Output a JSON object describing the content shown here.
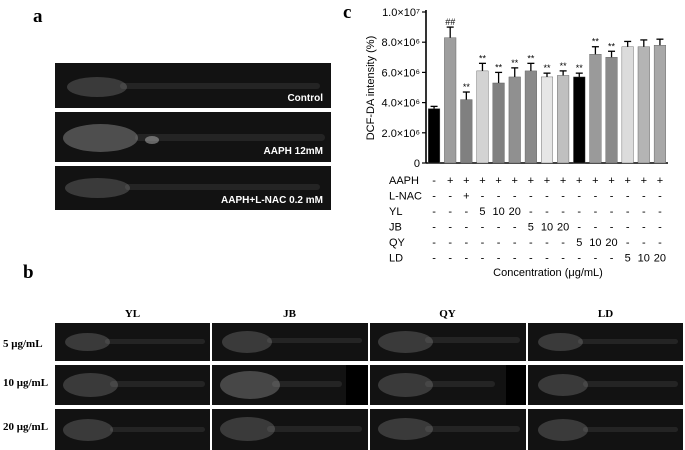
{
  "panels": {
    "a": {
      "letter": "a",
      "images": [
        {
          "label": "Control"
        },
        {
          "label": "AAPH 12mM"
        },
        {
          "label": "AAPH+L-NAC 0.2 mM"
        }
      ]
    },
    "b": {
      "letter": "b",
      "columns": [
        "YL",
        "JB",
        "QY",
        "LD"
      ],
      "rows": [
        "5 μg/mL",
        "10 μg/mL",
        "20 μg/mL"
      ]
    },
    "c": {
      "letter": "c"
    }
  },
  "chart_data": {
    "type": "bar",
    "ylabel": "DCF-DA intensity (%)",
    "xlabel": "Concentration (μg/mL)",
    "ylim": [
      0,
      10000000
    ],
    "yticks": [
      "0",
      "2.0×10⁶",
      "4.0×10⁶",
      "6.0×10⁶",
      "8.0×10⁶",
      "1.0×10⁷"
    ],
    "ytick_values": [
      0,
      2000000,
      4000000,
      6000000,
      8000000,
      10000000
    ],
    "values": [
      3600000,
      8300000,
      4200000,
      6100000,
      5300000,
      5700000,
      6100000,
      5700000,
      5800000,
      5700000,
      7200000,
      7000000,
      7700000,
      7700000,
      7800000
    ],
    "errors": [
      150000,
      700000,
      500000,
      500000,
      700000,
      600000,
      500000,
      250000,
      300000,
      250000,
      500000,
      400000,
      350000,
      450000,
      400000
    ],
    "bar_colors": [
      "#000000",
      "#9e9e9e",
      "#808080",
      "#d3d3d3",
      "#808080",
      "#909090",
      "#8a8a8a",
      "#e6e6e6",
      "#c0c0c0",
      "#000000",
      "#9a9a9a",
      "#8a8a8a",
      "#dcdcdc",
      "#b4b4b4",
      "#a8a8a8"
    ],
    "annotations": [
      "",
      "##",
      "**",
      "**",
      "**",
      "**",
      "**",
      "**",
      "**",
      "**",
      "**",
      "**",
      "",
      "",
      ""
    ],
    "table_rows": [
      {
        "label": "AAPH",
        "cells": [
          "-",
          "+",
          "+",
          "+",
          "+",
          "+",
          "+",
          "+",
          "+",
          "+",
          "+",
          "+",
          "+",
          "+",
          "+"
        ]
      },
      {
        "label": "L-NAC",
        "cells": [
          "-",
          "-",
          "+",
          "-",
          "-",
          "-",
          "-",
          "-",
          "-",
          "-",
          "-",
          "-",
          "-",
          "-",
          "-"
        ]
      },
      {
        "label": "YL",
        "cells": [
          "-",
          "-",
          "-",
          "5",
          "10",
          "20",
          "-",
          "-",
          "-",
          "-",
          "-",
          "-",
          "-",
          "-",
          "-"
        ]
      },
      {
        "label": "JB",
        "cells": [
          "-",
          "-",
          "-",
          "-",
          "-",
          "-",
          "5",
          "10",
          "20",
          "-",
          "-",
          "-",
          "-",
          "-",
          "-"
        ]
      },
      {
        "label": "QY",
        "cells": [
          "-",
          "-",
          "-",
          "-",
          "-",
          "-",
          "-",
          "-",
          "-",
          "5",
          "10",
          "20",
          "-",
          "-",
          "-"
        ]
      },
      {
        "label": "LD",
        "cells": [
          "-",
          "-",
          "-",
          "-",
          "-",
          "-",
          "-",
          "-",
          "-",
          "-",
          "-",
          "-",
          "5",
          "10",
          "20"
        ]
      }
    ]
  }
}
